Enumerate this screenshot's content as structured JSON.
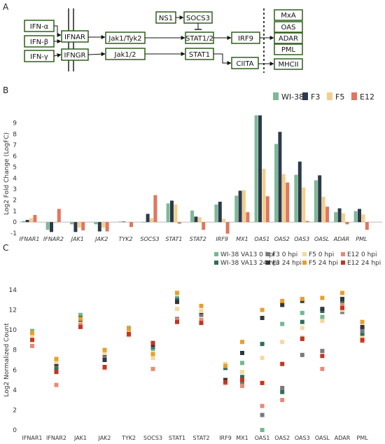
{
  "panels": {
    "a": "A",
    "b": "B",
    "c": "C"
  },
  "pathway": {
    "ifn_alpha": "IFN-α",
    "ifn_beta": "IFN-β",
    "ifn_gamma": "IFN-γ",
    "ifnar": "IFNAR",
    "ifngr": "IFNGR",
    "jak1_tyk2": "Jak1/Tyk2",
    "jak1_2": "Jak1/2",
    "ns1": "NS1",
    "socs3": "SOCS3",
    "stat12": "STAT1/2",
    "stat1": "STAT1",
    "irf9": "IRF9",
    "ciita": "CIITA",
    "mxa": "MxA",
    "oas": "OAS",
    "adar": "ADAR",
    "pml": "PML",
    "mhcii": "MHCII"
  },
  "colors": {
    "wi38": "#7fb897",
    "f3": "#2d3a4c",
    "f5": "#f3cf8d",
    "e12": "#e0765e",
    "wi38_0": "#72b890",
    "wi38_24": "#2f6e58",
    "f3_0": "#7a7a7a",
    "f3_24": "#33363a",
    "f5_0": "#f4d99e",
    "f5_24": "#e89f2a",
    "e12_0": "#e88a78",
    "e12_24": "#c4361f",
    "pathway_green": "#2f5e1c"
  },
  "chart_data": [
    {
      "type": "bar",
      "panel": "B",
      "ylabel": "Log2 Fold Change (LogFC)",
      "ylim": [
        -1.2,
        10
      ],
      "yticks": [
        -1,
        0,
        1,
        2,
        3,
        4,
        5,
        6,
        7,
        8,
        9
      ],
      "legend_position": "top-right",
      "categories": [
        "IFNAR1",
        "IFNAR2",
        "JAK1",
        "JAK2",
        "TYK2",
        "SOCS3",
        "STAT1",
        "STAT2",
        "IRF9",
        "MX1",
        "OAS1",
        "OAS2",
        "OAS3",
        "OASL",
        "ADAR",
        "PML"
      ],
      "series": [
        {
          "name": "WI-38",
          "values": [
            0.1,
            -0.7,
            -0.2,
            -0.2,
            0.05,
            -0.05,
            1.7,
            1.05,
            1.6,
            2.4,
            9.7,
            7.1,
            4.3,
            3.8,
            0.9,
            1.0
          ]
        },
        {
          "name": "F3",
          "values": [
            0.2,
            -0.9,
            -0.9,
            -0.85,
            0.05,
            0.75,
            1.95,
            0.5,
            1.85,
            2.85,
            9.7,
            8.2,
            5.5,
            4.25,
            1.25,
            1.2
          ]
        },
        {
          "name": "F5",
          "values": [
            0.35,
            -0.1,
            -0.5,
            -0.5,
            0.0,
            0.35,
            1.6,
            0.45,
            0.3,
            2.9,
            4.85,
            4.35,
            3.15,
            2.3,
            0.8,
            0.7
          ]
        },
        {
          "name": "E12",
          "values": [
            0.65,
            1.2,
            -0.75,
            -0.85,
            -0.45,
            2.45,
            -0.15,
            -0.7,
            -1.05,
            0.9,
            2.35,
            3.6,
            0.1,
            1.4,
            -0.2,
            -0.7
          ]
        }
      ]
    },
    {
      "type": "scatter",
      "panel": "C",
      "ylabel": "Log2 Normalized Count",
      "ylim": [
        0,
        14
      ],
      "yticks": [
        0,
        2,
        4,
        6,
        8,
        10,
        12,
        14
      ],
      "legend_position": "top-right",
      "categories": [
        "IFNAR1",
        "IFNAR2",
        "JAK1",
        "JAK2",
        "TYK2",
        "SOCS3",
        "STAT1",
        "STAT2",
        "IRF9",
        "MX1",
        "OAS1",
        "OAS2",
        "OAS3",
        "OASL",
        "ADAR",
        "PML"
      ],
      "series": [
        {
          "name": "WI-38 VA13 0 hpi",
          "values": [
            9.9,
            6.9,
            11.5,
            7.3,
            10.2,
            8.1,
            13.2,
            11.8,
            6.5,
            6.7,
            0.0,
            10.6,
            11.7,
            11.3,
            13.0,
            10.1
          ]
        },
        {
          "name": "WI-38 VA13 24 hpi",
          "values": [
            9.6,
            6.2,
            11.2,
            7.5,
            10.0,
            8.3,
            13.0,
            11.9,
            6.2,
            5.3,
            8.6,
            3.8,
            10.8,
            11.9,
            12.8,
            9.6
          ]
        },
        {
          "name": "F3 0 hpi",
          "values": [
            9.3,
            6.5,
            10.7,
            7.2,
            9.8,
            8.4,
            11.1,
            11.5,
            4.9,
            4.8,
            1.5,
            4.2,
            7.5,
            7.9,
            11.8,
            9.9
          ]
        },
        {
          "name": "F3 24 hpi",
          "values": [
            9.2,
            6.6,
            10.9,
            7.0,
            9.7,
            8.5,
            12.8,
            11.8,
            5.0,
            7.7,
            11.2,
            12.5,
            12.9,
            12.1,
            13.1,
            10.3
          ]
        },
        {
          "name": "F5 0 hpi",
          "values": [
            9.4,
            6.8,
            10.6,
            7.7,
            9.9,
            7.2,
            12.1,
            11.9,
            6.6,
            5.8,
            7.2,
            8.8,
            10.2,
            10.9,
            12.0,
            9.2
          ]
        },
        {
          "name": "F5 24 hpi",
          "values": [
            9.7,
            7.1,
            11.1,
            8.0,
            10.1,
            7.6,
            13.7,
            12.4,
            6.4,
            8.8,
            12.0,
            12.9,
            13.1,
            13.2,
            13.7,
            10.8
          ]
        },
        {
          "name": "E12 0 hpi",
          "values": [
            8.4,
            4.5,
            10.5,
            6.2,
            9.5,
            6.1,
            11.0,
            11.0,
            4.7,
            4.4,
            2.4,
            3.0,
            9.2,
            6.1,
            12.5,
            8.9
          ]
        },
        {
          "name": "E12 24 hpi",
          "values": [
            9.0,
            5.8,
            10.3,
            6.3,
            9.6,
            8.7,
            10.8,
            10.7,
            4.8,
            5.0,
            4.7,
            6.6,
            9.1,
            7.4,
            12.2,
            9.0
          ]
        }
      ]
    }
  ]
}
